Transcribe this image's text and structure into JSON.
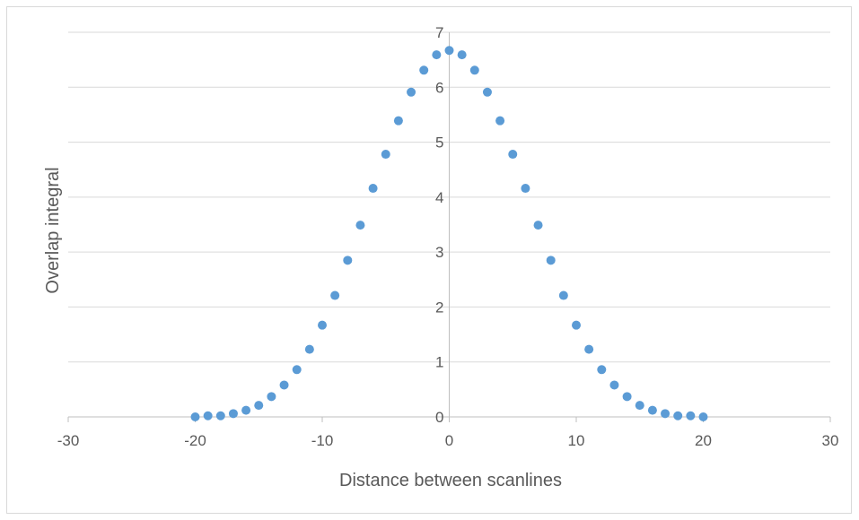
{
  "chart_data": {
    "type": "scatter",
    "title": "",
    "xlabel": "Distance between scanlines",
    "ylabel": "Overlap integral",
    "xlim": [
      -30,
      30
    ],
    "ylim": [
      0,
      7
    ],
    "x_ticks": [
      -30,
      -20,
      -10,
      0,
      10,
      20,
      30
    ],
    "y_ticks": [
      0,
      1,
      2,
      3,
      4,
      5,
      6,
      7
    ],
    "x_tick_labels": [
      "-30",
      "-20",
      "-10",
      "0",
      "10",
      "20",
      "30"
    ],
    "y_tick_labels": [
      "0",
      "1",
      "2",
      "3",
      "4",
      "5",
      "6",
      "7"
    ],
    "grid": {
      "horizontal": true,
      "vertical": false
    },
    "legend": "none",
    "marker_color": "#5b9bd5",
    "grid_color": "#d9d9d9",
    "axis_color": "#bfbfbf",
    "text_color": "#595959",
    "series": [
      {
        "x": [
          -20,
          -19,
          -18,
          -17,
          -16,
          -15,
          -14,
          -13,
          -12,
          -11,
          -10,
          -9,
          -8,
          -7,
          -6,
          -5,
          -4,
          -3,
          -2,
          -1,
          0,
          1,
          2,
          3,
          4,
          5,
          6,
          7,
          8,
          9,
          10,
          11,
          12,
          13,
          14,
          15,
          16,
          17,
          18,
          19,
          20
        ],
        "y": [
          0.0,
          0.02,
          0.02,
          0.06,
          0.12,
          0.21,
          0.37,
          0.58,
          0.86,
          1.23,
          1.67,
          2.21,
          2.85,
          3.49,
          4.16,
          4.78,
          5.39,
          5.91,
          6.31,
          6.59,
          6.67,
          6.59,
          6.31,
          5.91,
          5.39,
          4.78,
          4.16,
          3.49,
          2.85,
          2.21,
          1.67,
          1.23,
          0.86,
          0.58,
          0.37,
          0.21,
          0.12,
          0.06,
          0.02,
          0.02,
          0.0
        ]
      }
    ]
  }
}
